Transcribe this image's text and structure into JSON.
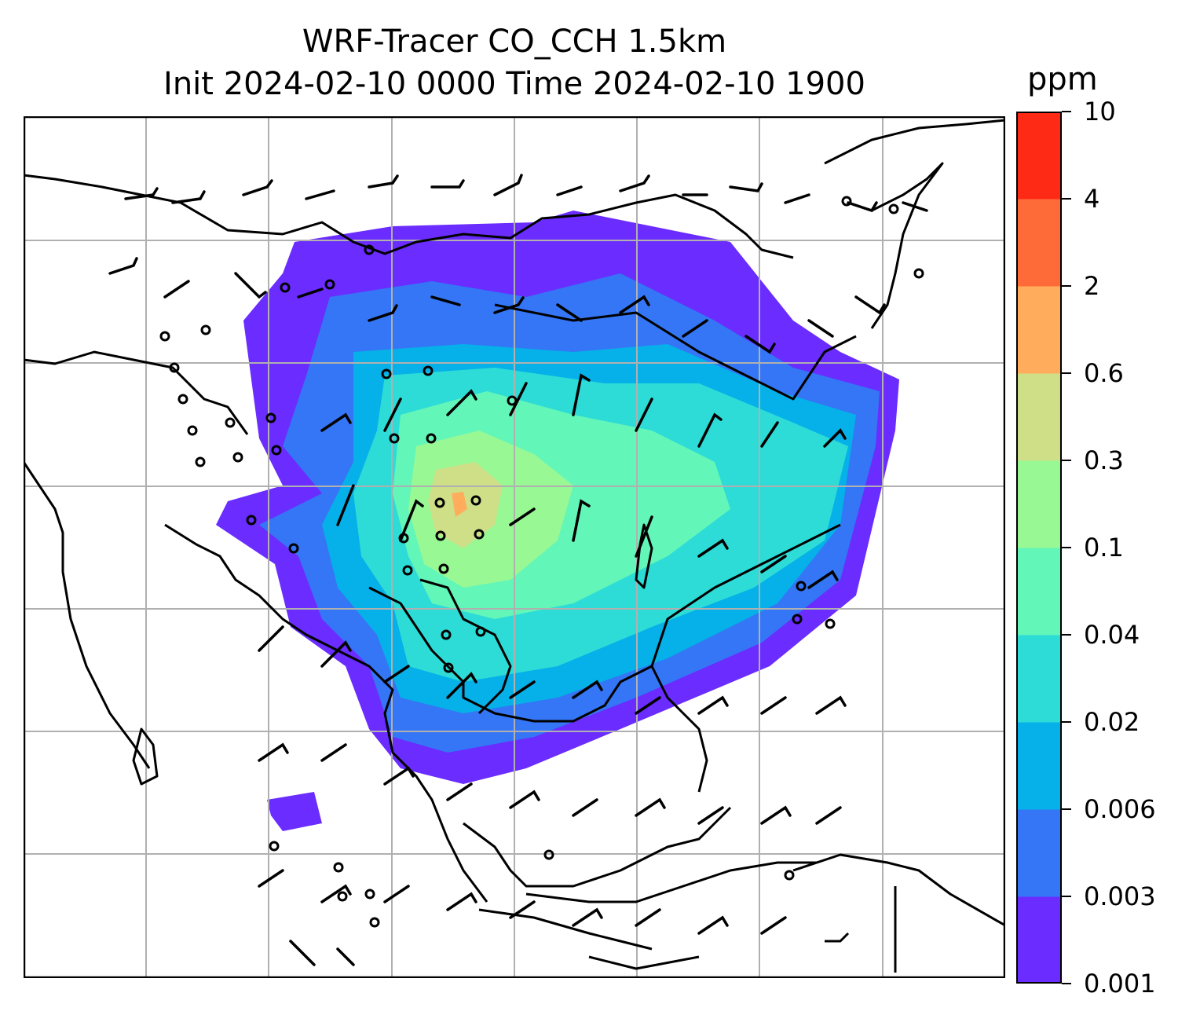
{
  "title": {
    "line1": "WRF-Tracer CO_CCH 1.5km",
    "line2": "Init 2024-02-10 0000 Time 2024-02-10 1900"
  },
  "colorbar": {
    "unit": "ppm",
    "labels": [
      "10",
      "4",
      "2",
      "0.6",
      "0.3",
      "0.1",
      "0.04",
      "0.02",
      "0.006",
      "0.003",
      "0.001"
    ],
    "colors": [
      "#6a2cff",
      "#3476f5",
      "#05b1e8",
      "#2ddcd6",
      "#63f6b9",
      "#98f894",
      "#cedf88",
      "#ffad5c",
      "#ff6b38",
      "#ff2a16"
    ]
  },
  "map": {
    "field": "CO_CCH tracer concentration",
    "wind_barbs": true,
    "coastlines": true,
    "gridlines": true
  }
}
